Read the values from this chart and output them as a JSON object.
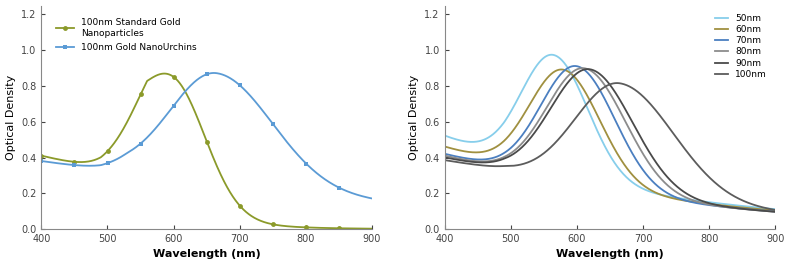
{
  "xlabel": "Wavelength (nm)",
  "ylabel": "Optical Density",
  "xticks": [
    400,
    500,
    600,
    700,
    800,
    900
  ],
  "yticks": [
    0.0,
    0.2,
    0.4,
    0.6,
    0.8,
    1.0,
    1.2
  ],
  "xlim": [
    400,
    900
  ],
  "ylim": [
    0.0,
    1.25
  ],
  "left_std_color": "#8B9A2A",
  "left_urchin_color": "#5B9BD5",
  "left_std_label": "100nm Standard Gold\nNanoparticles",
  "left_urchin_label": "100nm Gold NanoUrchins",
  "right_colors": [
    "#87CEEB",
    "#A09040",
    "#4B7FC0",
    "#8C8C8C",
    "#4A4A4A",
    "#5C5C5C"
  ],
  "right_labels": [
    "50nm",
    "60nm",
    "70nm",
    "80nm",
    "90nm",
    "100nm"
  ],
  "bg_color": "#ffffff"
}
